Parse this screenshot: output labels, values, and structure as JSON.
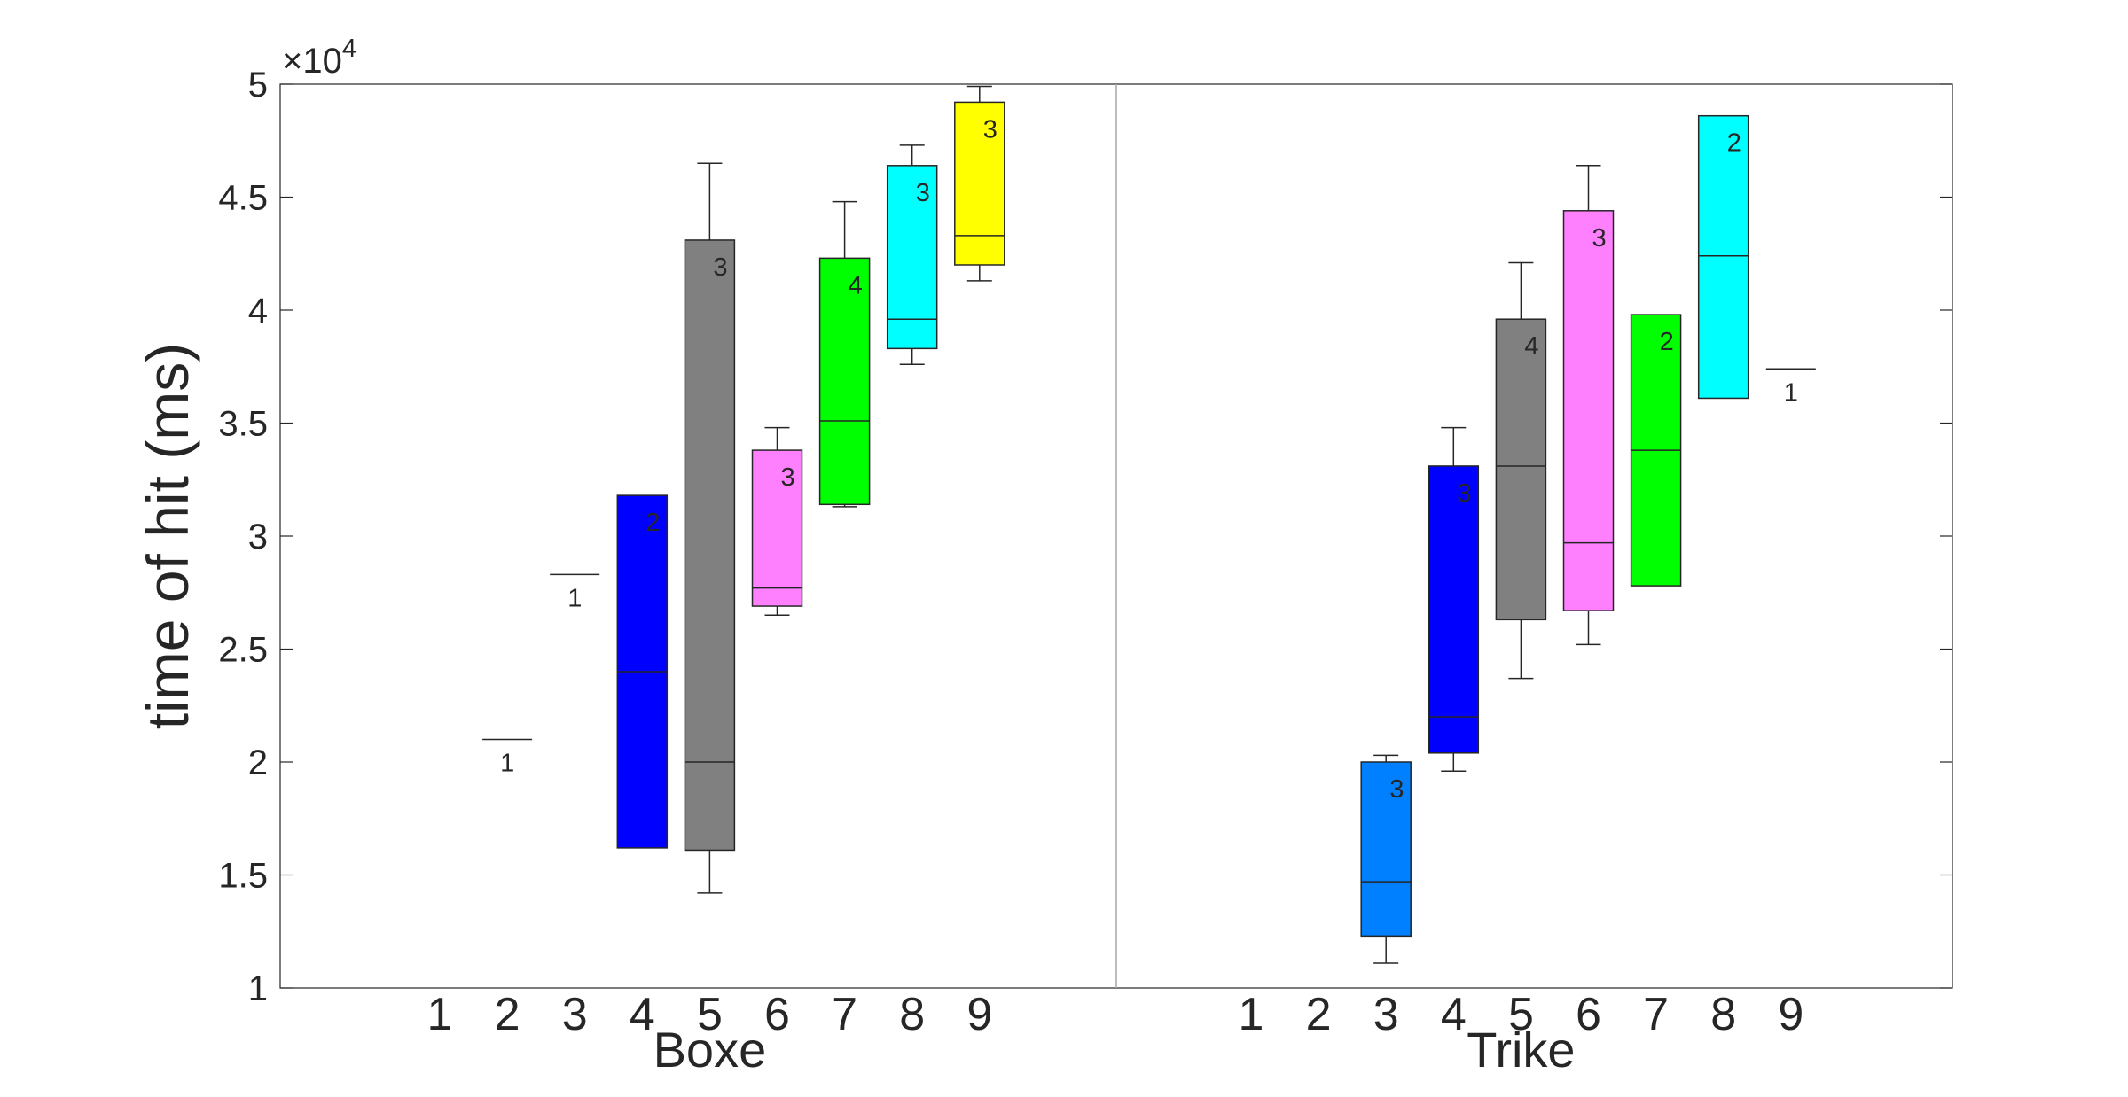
{
  "chart_data": {
    "type": "box",
    "ylabel": "time of hit (ms)",
    "y_exponent_label": "×10",
    "y_exponent_power": "4",
    "ylim": [
      10000,
      50000
    ],
    "y_ticks": [
      10000,
      15000,
      20000,
      25000,
      30000,
      35000,
      40000,
      45000,
      50000
    ],
    "y_tick_labels": [
      "1",
      "1.5",
      "2",
      "2.5",
      "3",
      "3.5",
      "4",
      "4.5",
      "5"
    ],
    "grid": false,
    "groups": [
      {
        "name": "Boxe",
        "categories": [
          "1",
          "2",
          "3",
          "4",
          "5",
          "6",
          "7",
          "8",
          "9"
        ],
        "boxes": [
          {
            "category": 2,
            "min": 21000,
            "q1": 21000,
            "median": 21000,
            "q3": 21000,
            "max": 21000,
            "count": "1",
            "color": null
          },
          {
            "category": 3,
            "min": 28300,
            "q1": 28300,
            "median": 28300,
            "q3": 28300,
            "max": 28300,
            "count": "1",
            "color": null
          },
          {
            "category": 4,
            "min": 16200,
            "q1": 16200,
            "median": 24000,
            "q3": 31800,
            "max": 31800,
            "count": "2",
            "color": "#0000ff"
          },
          {
            "category": 5,
            "min": 14200,
            "q1": 16100,
            "median": 20000,
            "q3": 43100,
            "max": 46500,
            "count": "3",
            "color": "#808080"
          },
          {
            "category": 6,
            "min": 26500,
            "q1": 26900,
            "median": 27700,
            "q3": 33800,
            "max": 34800,
            "count": "3",
            "color": "#ff80ff"
          },
          {
            "category": 7,
            "min": 31300,
            "q1": 31400,
            "median": 35100,
            "q3": 42300,
            "max": 44800,
            "count": "4",
            "color": "#00ff00"
          },
          {
            "category": 8,
            "min": 37600,
            "q1": 38300,
            "median": 39600,
            "q3": 46400,
            "max": 47300,
            "count": "3",
            "color": "#00ffff"
          },
          {
            "category": 9,
            "min": 41300,
            "q1": 42000,
            "median": 43300,
            "q3": 49200,
            "max": 49900,
            "count": "3",
            "color": "#ffff00"
          }
        ]
      },
      {
        "name": "Trike",
        "categories": [
          "1",
          "2",
          "3",
          "4",
          "5",
          "6",
          "7",
          "8",
          "9"
        ],
        "boxes": [
          {
            "category": 3,
            "min": 11100,
            "q1": 12300,
            "median": 14700,
            "q3": 20000,
            "max": 20300,
            "count": "3",
            "color": "#0080ff"
          },
          {
            "category": 4,
            "min": 19600,
            "q1": 20400,
            "median": 22000,
            "q3": 33100,
            "max": 34800,
            "count": "3",
            "color": "#0000ff"
          },
          {
            "category": 5,
            "min": 23700,
            "q1": 26300,
            "median": 33100,
            "q3": 39600,
            "max": 42100,
            "count": "4",
            "color": "#808080"
          },
          {
            "category": 6,
            "min": 25200,
            "q1": 26700,
            "median": 29700,
            "q3": 44400,
            "max": 46400,
            "count": "3",
            "color": "#ff80ff"
          },
          {
            "category": 7,
            "min": 27800,
            "q1": 27800,
            "median": 33800,
            "q3": 39800,
            "max": 39800,
            "count": "2",
            "color": "#00ff00"
          },
          {
            "category": 8,
            "min": 36100,
            "q1": 36100,
            "median": 42400,
            "q3": 48600,
            "max": 48600,
            "count": "2",
            "color": "#00ffff"
          },
          {
            "category": 9,
            "min": 37400,
            "q1": 37400,
            "median": 37400,
            "q3": 37400,
            "max": 37400,
            "count": "1",
            "color": null
          }
        ]
      }
    ]
  }
}
